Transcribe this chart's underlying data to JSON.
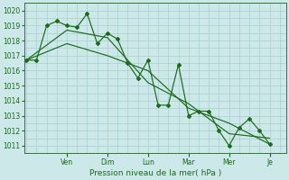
{
  "title": "",
  "xlabel": "Pression niveau de la mer( hPa )",
  "ylabel": "",
  "bg_color": "#cce8e8",
  "grid_color": "#aacece",
  "line_color": "#1a6b1a",
  "marker_color": "#1a6b1a",
  "ylim": [
    1010.5,
    1020.5
  ],
  "yticks": [
    1011,
    1012,
    1013,
    1014,
    1015,
    1016,
    1017,
    1018,
    1019,
    1020
  ],
  "day_labels": [
    "Ven",
    "Dim",
    "Lun",
    "Mar",
    "Mer",
    "Je"
  ],
  "day_positions": [
    2.0,
    4.0,
    6.0,
    8.0,
    10.0,
    12.0
  ],
  "series1_x": [
    0,
    0.5,
    1.0,
    1.5,
    2.0,
    2.5,
    3.0,
    3.5,
    4.0,
    4.5,
    5.0,
    5.5,
    6.0,
    6.5,
    7.0,
    7.5,
    8.0,
    8.5,
    9.0,
    9.5,
    10.0,
    10.5,
    11.0,
    11.5,
    12.0
  ],
  "series1_y": [
    1016.7,
    1016.7,
    1019.0,
    1019.3,
    1019.0,
    1018.9,
    1019.8,
    1017.8,
    1018.5,
    1018.1,
    1016.5,
    1015.5,
    1016.7,
    1013.7,
    1013.7,
    1016.4,
    1013.0,
    1013.3,
    1013.3,
    1012.0,
    1011.0,
    1012.2,
    1012.8,
    1012.0,
    1011.1
  ],
  "series2_x": [
    0,
    2.0,
    4.0,
    6.0,
    8.0,
    10.0,
    12.0
  ],
  "series2_y": [
    1016.7,
    1017.8,
    1017.0,
    1016.0,
    1013.5,
    1012.5,
    1011.1
  ],
  "series3_x": [
    0,
    2.0,
    4.0,
    6.0,
    8.0,
    10.0,
    12.0
  ],
  "series3_y": [
    1016.7,
    1018.7,
    1018.2,
    1015.2,
    1013.8,
    1011.8,
    1011.5
  ],
  "xlim": [
    -0.1,
    12.8
  ],
  "xlabel_fontsize": 6.5,
  "tick_fontsize": 5.5
}
